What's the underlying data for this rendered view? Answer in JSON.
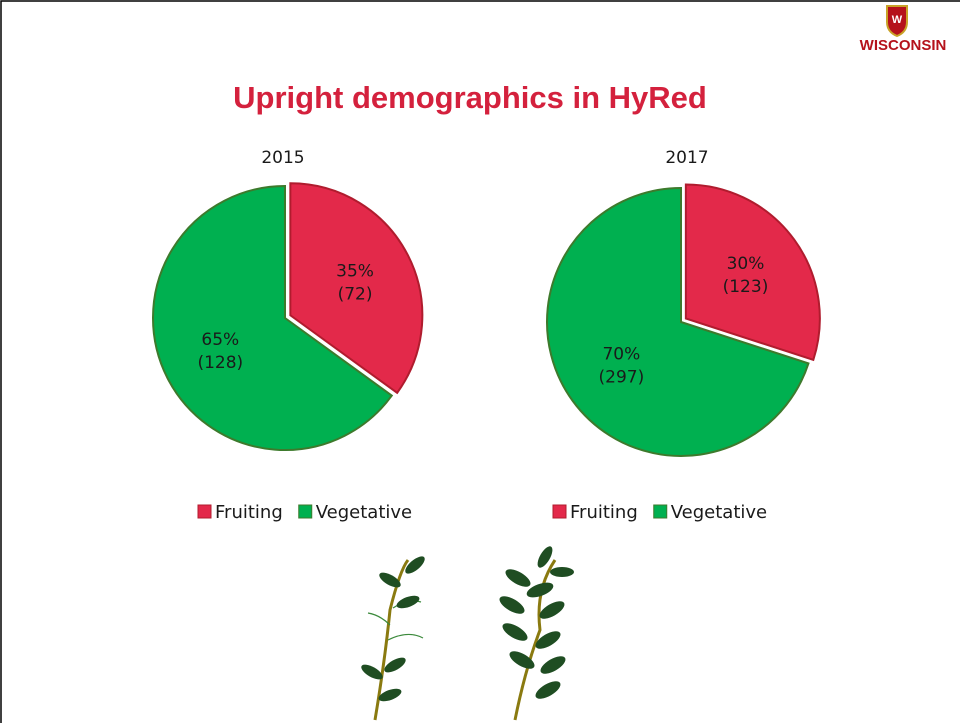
{
  "title": "Upright demographics in HyRed",
  "logo": "WISCONSIN",
  "chart_data": [
    {
      "type": "pie",
      "title": "2015",
      "categories": [
        "Fruiting",
        "Vegetative"
      ],
      "values": [
        35,
        65
      ],
      "value_labels": [
        "35%",
        "65%"
      ],
      "count_labels": [
        "(72)",
        "(128)"
      ],
      "colors": [
        "#e3294a",
        "#00b050"
      ],
      "legend": "bottom"
    },
    {
      "type": "pie",
      "title": "2017",
      "categories": [
        "Fruiting",
        "Vegetative"
      ],
      "values": [
        30,
        70
      ],
      "value_labels": [
        "30%",
        "70%"
      ],
      "count_labels": [
        "(123)",
        "(297)"
      ],
      "colors": [
        "#e3294a",
        "#00b050"
      ],
      "legend": "bottom"
    }
  ]
}
